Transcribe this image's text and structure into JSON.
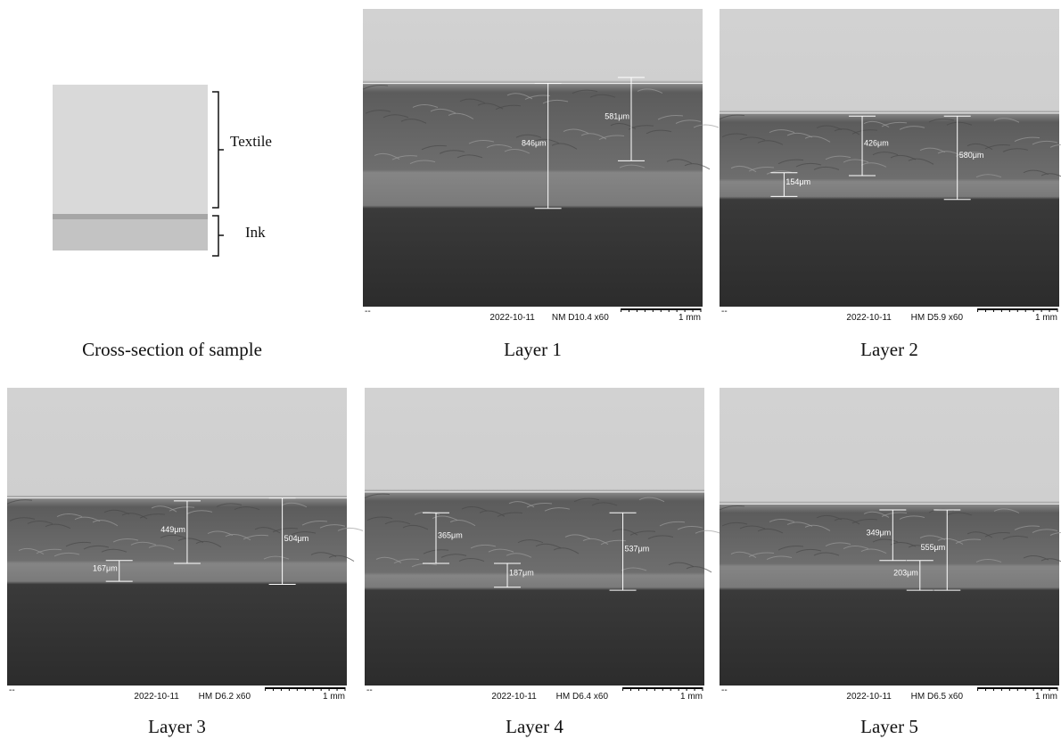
{
  "schematic": {
    "textile_label": "Textile",
    "ink_label": "Ink",
    "caption": "Cross-section of sample"
  },
  "panels": [
    {
      "caption": "Layer 1",
      "marker": "--",
      "date": "2022-10-11",
      "settings": "NM  D10.4  x60",
      "scale": "1 mm",
      "measurements": [
        "846μm",
        "581μm"
      ]
    },
    {
      "caption": "Layer 2",
      "marker": "--",
      "date": "2022-10-11",
      "settings": "HM  D5.9   x60",
      "scale": "1 mm",
      "measurements": [
        "426μm",
        "154μm",
        "580μm"
      ]
    },
    {
      "caption": "Layer 3",
      "marker": "--",
      "date": "2022-10-11",
      "settings": "HM  D6.2   x60",
      "scale": "1 mm",
      "measurements": [
        "449μm",
        "167μm",
        "504μm"
      ]
    },
    {
      "caption": "Layer 4",
      "marker": "--",
      "date": "2022-10-11",
      "settings": "HM  D6.4   x60",
      "scale": "1 mm",
      "measurements": [
        "365μm",
        "187μm",
        "537μm"
      ]
    },
    {
      "caption": "Layer 5",
      "marker": "--",
      "date": "2022-10-11",
      "settings": "HM  D6.5   x60",
      "scale": "1 mm",
      "measurements": [
        "349μm",
        "203μm",
        "555μm"
      ]
    }
  ]
}
